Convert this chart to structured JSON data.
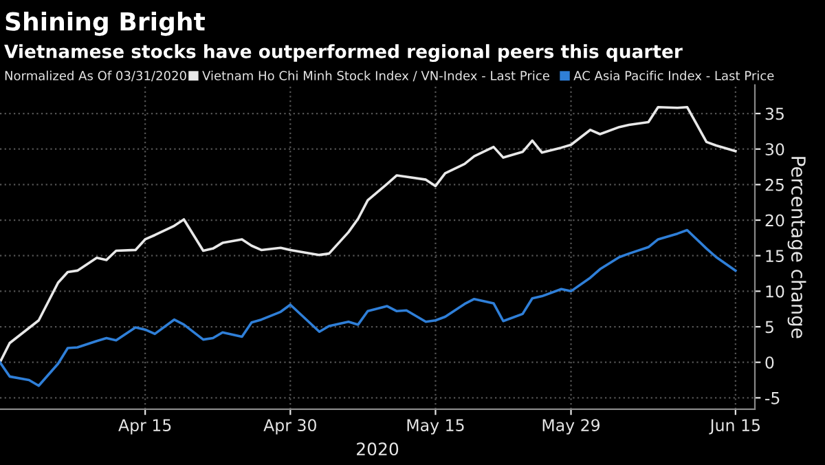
{
  "chart_data": {
    "type": "line",
    "title": "Shining Bright",
    "subtitle": "Vietnamese stocks have outperformed regional peers this quarter",
    "annotations": [
      "Normalized As Of 03/31/2020"
    ],
    "xlabel": "2020",
    "ylabel": "Percentage change",
    "xlim": [
      "2020-03-31",
      "2020-06-17"
    ],
    "xticks": [
      {
        "value": "2020-04-15",
        "label": "Apr 15"
      },
      {
        "value": "2020-04-30",
        "label": "Apr 30"
      },
      {
        "value": "2020-05-15",
        "label": "May 15"
      },
      {
        "value": "2020-05-29",
        "label": "May 29"
      },
      {
        "value": "2020-06-15",
        "label": "Jun 15"
      }
    ],
    "ylim": [
      -6.6,
      39
    ],
    "yticks": [
      -5,
      0,
      5,
      10,
      15,
      20,
      25,
      30,
      35
    ],
    "grid": true,
    "legend": "top",
    "marker": "none",
    "line_style": "solid",
    "series": [
      {
        "name": "Vietnam Ho Chi Minh Stock Index / VN-Index - Last Price",
        "color": "#e8e8e8",
        "x": [
          "2020-03-31",
          "2020-04-01",
          "2020-04-04",
          "2020-04-06",
          "2020-04-07",
          "2020-04-08",
          "2020-04-10",
          "2020-04-11",
          "2020-04-12",
          "2020-04-14",
          "2020-04-15",
          "2020-04-16",
          "2020-04-18",
          "2020-04-19",
          "2020-04-21",
          "2020-04-22",
          "2020-04-23",
          "2020-04-25",
          "2020-04-26",
          "2020-04-27",
          "2020-04-29",
          "2020-04-30",
          "2020-05-03",
          "2020-05-04",
          "2020-05-06",
          "2020-05-07",
          "2020-05-08",
          "2020-05-10",
          "2020-05-11",
          "2020-05-12",
          "2020-05-14",
          "2020-05-15",
          "2020-05-16",
          "2020-05-18",
          "2020-05-19",
          "2020-05-21",
          "2020-05-22",
          "2020-05-24",
          "2020-05-25",
          "2020-05-26",
          "2020-05-28",
          "2020-05-29",
          "2020-05-31",
          "2020-06-01",
          "2020-06-03",
          "2020-06-04",
          "2020-06-06",
          "2020-06-07",
          "2020-06-09",
          "2020-06-10",
          "2020-06-12",
          "2020-06-13",
          "2020-06-15"
        ],
        "values": [
          0,
          2.7,
          5.9,
          11.2,
          12.7,
          12.9,
          14.7,
          14.4,
          15.7,
          15.8,
          17.3,
          17.9,
          19.2,
          20.1,
          15.7,
          16.0,
          16.8,
          17.3,
          16.4,
          15.8,
          16.1,
          15.8,
          15.1,
          15.3,
          18.3,
          20.2,
          22.8,
          25.1,
          26.3,
          26.1,
          25.7,
          24.8,
          26.6,
          27.9,
          29.0,
          30.3,
          28.8,
          29.6,
          31.2,
          29.5,
          30.2,
          30.6,
          32.7,
          32.1,
          33.1,
          33.4,
          33.8,
          35.9,
          35.8,
          35.9,
          31.0,
          30.5,
          29.7
        ]
      },
      {
        "name": "AC Asia Pacific Index - Last Price",
        "color": "#2f7fd8",
        "x": [
          "2020-03-31",
          "2020-04-01",
          "2020-04-03",
          "2020-04-04",
          "2020-04-06",
          "2020-04-07",
          "2020-04-08",
          "2020-04-10",
          "2020-04-11",
          "2020-04-12",
          "2020-04-14",
          "2020-04-15",
          "2020-04-16",
          "2020-04-18",
          "2020-04-19",
          "2020-04-21",
          "2020-04-22",
          "2020-04-23",
          "2020-04-25",
          "2020-04-26",
          "2020-04-27",
          "2020-04-29",
          "2020-04-30",
          "2020-05-03",
          "2020-05-04",
          "2020-05-06",
          "2020-05-07",
          "2020-05-08",
          "2020-05-10",
          "2020-05-11",
          "2020-05-12",
          "2020-05-14",
          "2020-05-15",
          "2020-05-16",
          "2020-05-18",
          "2020-05-19",
          "2020-05-21",
          "2020-05-22",
          "2020-05-24",
          "2020-05-25",
          "2020-05-26",
          "2020-05-28",
          "2020-05-29",
          "2020-05-31",
          "2020-06-01",
          "2020-06-03",
          "2020-06-04",
          "2020-06-06",
          "2020-06-07",
          "2020-06-09",
          "2020-06-10",
          "2020-06-12",
          "2020-06-13",
          "2020-06-15"
        ],
        "values": [
          0,
          -2.0,
          -2.5,
          -3.3,
          -0.2,
          2.0,
          2.1,
          3.0,
          3.4,
          3.1,
          4.9,
          4.6,
          4.0,
          6.0,
          5.3,
          3.2,
          3.4,
          4.2,
          3.6,
          5.6,
          6.0,
          7.1,
          8.1,
          4.3,
          5.1,
          5.7,
          5.3,
          7.2,
          7.9,
          7.2,
          7.3,
          5.7,
          5.9,
          6.4,
          8.2,
          8.9,
          8.3,
          5.8,
          6.8,
          9.0,
          9.3,
          10.3,
          10.0,
          11.9,
          13.1,
          14.8,
          15.3,
          16.2,
          17.3,
          18.1,
          18.6,
          16.0,
          14.8,
          12.9
        ]
      }
    ]
  }
}
